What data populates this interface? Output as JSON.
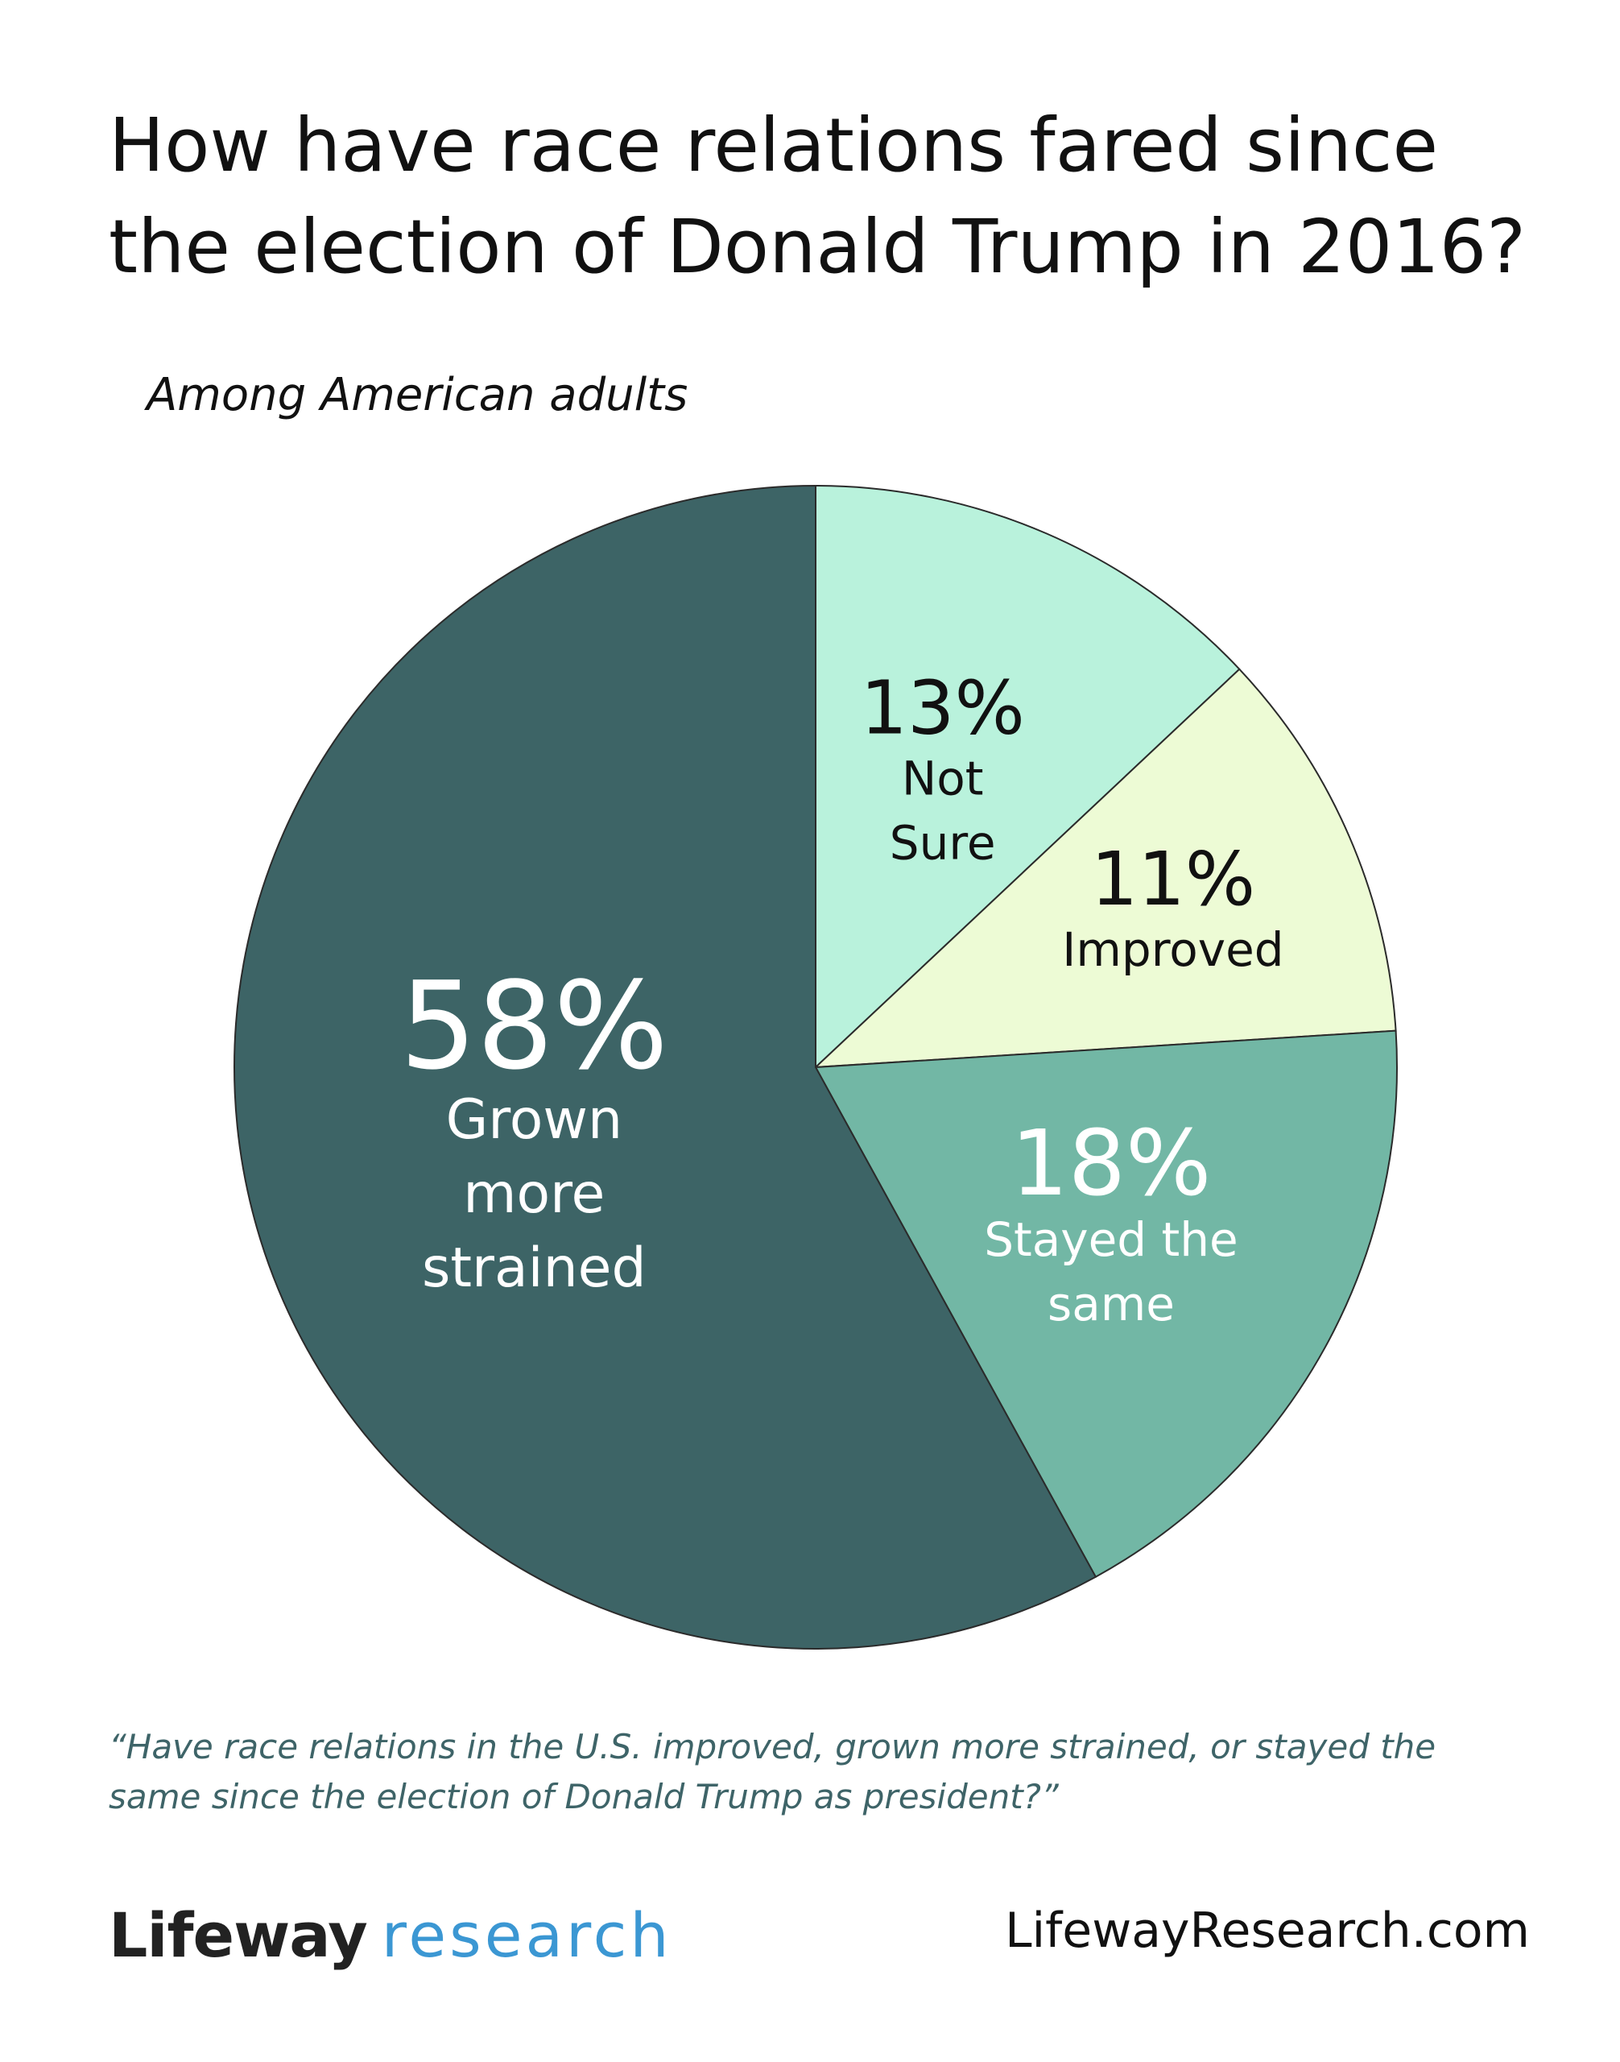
{
  "title": "How have race relations fared since the election of Donald Trump in 2016?",
  "subtitle": "Among American adults",
  "question": "“Have race relations in the U.S. improved, grown more strained, or stayed the same since the election of Donald Trump as president?”",
  "brand": {
    "name_bold": "Lifeway",
    "name_light": "research",
    "website": "LifewayResearch.com"
  },
  "colors": {
    "brand_blue": "#3b97d3",
    "question_text": "#3e6468"
  },
  "chart_data": {
    "type": "pie",
    "title": "How have race relations fared since the election of Donald Trump in 2016?",
    "subtitle": "Among American adults",
    "slices": [
      {
        "label": "Not Sure",
        "label_lines": [
          "Not",
          "Sure"
        ],
        "value": 13,
        "value_label": "13%",
        "color": "#b9f2dc",
        "text_color": "#111111"
      },
      {
        "label": "Improved",
        "label_lines": [
          "Improved"
        ],
        "value": 11,
        "value_label": "11%",
        "color": "#edfbd5",
        "text_color": "#111111"
      },
      {
        "label": "Stayed the same",
        "label_lines": [
          "Stayed the",
          "same"
        ],
        "value": 18,
        "value_label": "18%",
        "color": "#72b7a5",
        "text_color": "#ffffff"
      },
      {
        "label": "Grown more strained",
        "label_lines": [
          "Grown",
          "more",
          "strained"
        ],
        "value": 58,
        "value_label": "58%",
        "color": "#3d6466",
        "text_color": "#ffffff"
      }
    ]
  }
}
